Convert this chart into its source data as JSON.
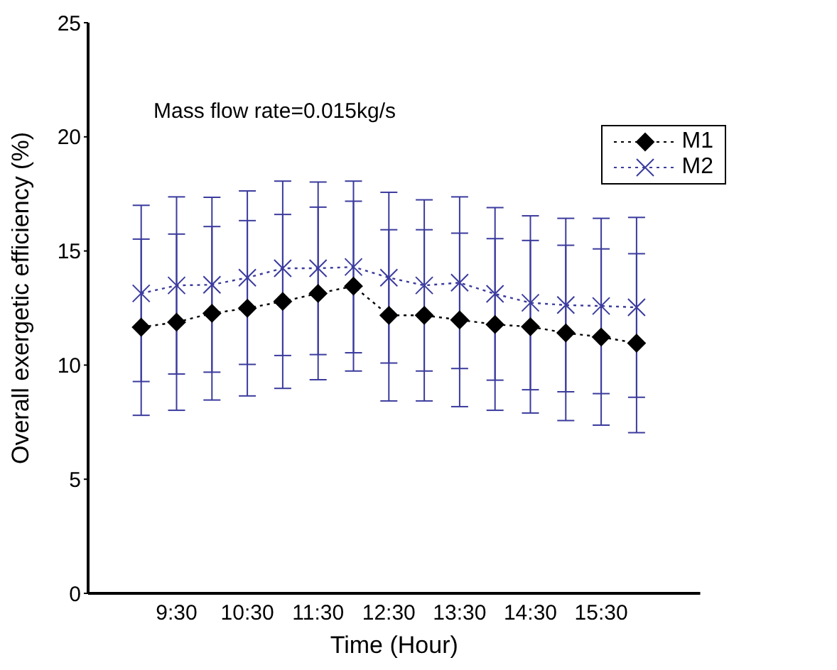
{
  "chart_data": {
    "type": "line",
    "xlabel": "Time (Hour)",
    "ylabel": "Overall exergetic efficiency (%)",
    "annotations": [
      "Mass flow rate=0.015kg/s"
    ],
    "x": [
      9,
      9.5,
      10,
      10.5,
      11,
      11.5,
      12,
      12.5,
      13,
      13.5,
      14,
      14.5,
      15,
      15.5,
      16
    ],
    "xlim": [
      8.25,
      16.9
    ],
    "xticks": [
      {
        "value": 9.5,
        "label": "9:30"
      },
      {
        "value": 10.5,
        "label": "10:30"
      },
      {
        "value": 11.5,
        "label": "11:30"
      },
      {
        "value": 12.5,
        "label": "12:30"
      },
      {
        "value": 13.5,
        "label": "13:30"
      },
      {
        "value": 14.5,
        "label": "14:30"
      },
      {
        "value": 15.5,
        "label": "15:30"
      }
    ],
    "ylim": [
      0,
      25
    ],
    "yticks": [
      0,
      5,
      10,
      15,
      20,
      25
    ],
    "legend": "top right",
    "line_style": "dotted",
    "series": [
      {
        "name": "M1",
        "color": "#000000",
        "marker": "diamond",
        "values": [
          11.66,
          11.88,
          12.27,
          12.49,
          12.79,
          13.14,
          13.46,
          12.18,
          12.18,
          11.98,
          11.78,
          11.68,
          11.41,
          11.23,
          10.96
        ],
        "errors": [
          3.86,
          3.86,
          3.8,
          3.84,
          3.81,
          3.78,
          3.72,
          3.75,
          3.75,
          3.8,
          3.76,
          3.78,
          3.84,
          3.86,
          3.92
        ]
      },
      {
        "name": "M2",
        "color": "#3b3b9e",
        "marker": "cross",
        "values": [
          13.14,
          13.49,
          13.52,
          13.83,
          14.24,
          14.24,
          14.3,
          13.83,
          13.49,
          13.61,
          13.12,
          12.73,
          12.63,
          12.59,
          12.53
        ],
        "errors": [
          3.86,
          3.88,
          3.83,
          3.8,
          3.82,
          3.78,
          3.76,
          3.74,
          3.75,
          3.76,
          3.78,
          3.81,
          3.8,
          3.84,
          3.94
        ]
      }
    ]
  }
}
